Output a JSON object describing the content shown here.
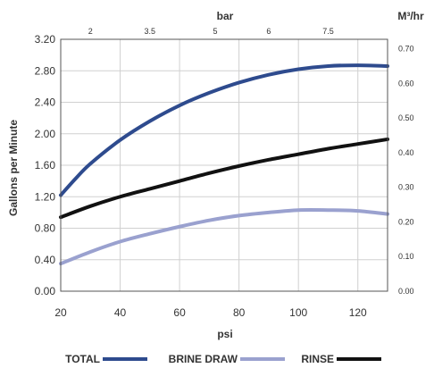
{
  "chart_data": {
    "type": "line",
    "xlabel": "psi",
    "ylabel": "Gallons per Minute",
    "top_axis_label": "bar",
    "right_axis_label": "M³/hr",
    "xlim": [
      20,
      130
    ],
    "ylim": [
      0,
      3.2
    ],
    "x_ticks": [
      "20",
      "40",
      "60",
      "80",
      "100",
      "120"
    ],
    "y_ticks": [
      "0.00",
      "0.40",
      "0.80",
      "1.20",
      "1.60",
      "2.00",
      "2.40",
      "2.80",
      "3.20"
    ],
    "top_ticks": [
      {
        "label": "2",
        "psi": 30
      },
      {
        "label": "3.5",
        "psi": 50
      },
      {
        "label": "5",
        "psi": 72
      },
      {
        "label": "6",
        "psi": 90
      },
      {
        "label": "7.5",
        "psi": 110
      }
    ],
    "right_ticks": [
      {
        "label": "0.00",
        "gpm": 0.0
      },
      {
        "label": "0.10",
        "gpm": 0.44
      },
      {
        "label": "0.20",
        "gpm": 0.88
      },
      {
        "label": "0.30",
        "gpm": 1.32
      },
      {
        "label": "0.40",
        "gpm": 1.76
      },
      {
        "label": "0.50",
        "gpm": 2.2
      },
      {
        "label": "0.60",
        "gpm": 2.64
      },
      {
        "label": "0.70",
        "gpm": 3.08
      }
    ],
    "grid": true,
    "legend_position": "bottom",
    "series": [
      {
        "name": "TOTAL",
        "color": "#2e4b8e",
        "x": [
          20,
          25,
          30,
          40,
          50,
          60,
          70,
          80,
          90,
          100,
          110,
          120,
          130
        ],
        "y": [
          1.22,
          1.43,
          1.62,
          1.92,
          2.16,
          2.36,
          2.52,
          2.65,
          2.75,
          2.82,
          2.86,
          2.87,
          2.86
        ]
      },
      {
        "name": "BRINE DRAW",
        "color": "#9aa1cf",
        "x": [
          20,
          30,
          40,
          50,
          60,
          70,
          80,
          90,
          100,
          110,
          120,
          130
        ],
        "y": [
          0.35,
          0.5,
          0.63,
          0.73,
          0.82,
          0.9,
          0.96,
          1.0,
          1.03,
          1.03,
          1.02,
          0.98
        ]
      },
      {
        "name": "RINSE",
        "color": "#111111",
        "x": [
          20,
          30,
          40,
          50,
          60,
          70,
          80,
          90,
          100,
          110,
          120,
          130
        ],
        "y": [
          0.94,
          1.08,
          1.2,
          1.3,
          1.4,
          1.5,
          1.59,
          1.67,
          1.74,
          1.81,
          1.87,
          1.93
        ]
      }
    ]
  }
}
